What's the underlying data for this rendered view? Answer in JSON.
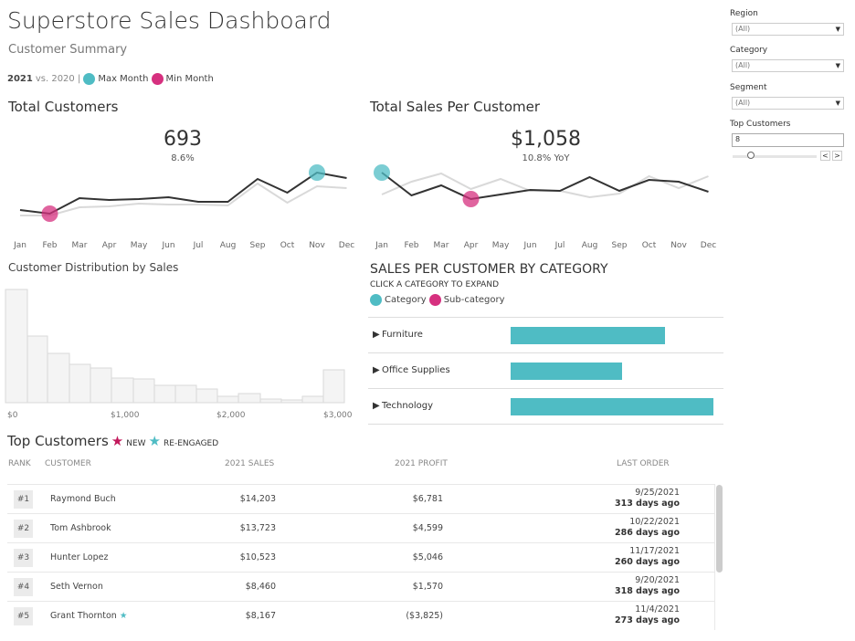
{
  "header": {
    "title": "Superstore Sales Dashboard",
    "subtitle": "Customer Summary",
    "legend_year": "2021",
    "legend_vs": "vs. 2020 |",
    "max_label": "Max Month",
    "min_label": "Min Month"
  },
  "colors": {
    "max": "#4fbcc4",
    "min": "#d6307f",
    "current": "#333333",
    "prior": "#d9d9d9"
  },
  "filters": [
    {
      "label": "Region",
      "value": "(All)"
    },
    {
      "label": "Category",
      "value": "(All)"
    },
    {
      "label": "Segment",
      "value": "(All)"
    }
  ],
  "top_customers_filter": {
    "label": "Top Customers",
    "value": "8"
  },
  "chart_data": [
    {
      "type": "line",
      "title": "Total Customers",
      "kpi": "693",
      "kpi_change": "8.6%",
      "categories": [
        "Jan",
        "Feb",
        "Mar",
        "Apr",
        "May",
        "Jun",
        "Jul",
        "Aug",
        "Sep",
        "Oct",
        "Nov",
        "Dec"
      ],
      "series": [
        {
          "values": [
            20,
            16,
            33,
            31,
            32,
            34,
            29,
            29,
            54,
            39,
            61,
            55
          ]
        },
        {
          "values": [
            14,
            14,
            23,
            24,
            27,
            26,
            26,
            25,
            49,
            28,
            46,
            44
          ]
        }
      ],
      "max_index": 10,
      "min_index": 1
    },
    {
      "type": "line",
      "title": "Total Sales Per Customer",
      "kpi": "$1,058",
      "kpi_change": "10.8% YoY",
      "categories": [
        "Jan",
        "Feb",
        "Mar",
        "Apr",
        "May",
        "Jun",
        "Jul",
        "Aug",
        "Sep",
        "Oct",
        "Nov",
        "Dec"
      ],
      "series": [
        {
          "values": [
            61,
            36,
            47,
            32,
            37,
            42,
            41,
            56,
            41,
            53,
            51,
            40
          ]
        },
        {
          "values": [
            37,
            51,
            60,
            43,
            54,
            41,
            41,
            34,
            38,
            57,
            44,
            57
          ]
        }
      ],
      "max_index": 0,
      "min_index": 3
    },
    {
      "type": "bar",
      "title": "Customer Distribution by Sales",
      "x_ticks": [
        "$0",
        "$1,000",
        "$2,000",
        "$3,000"
      ],
      "values": [
        124,
        73,
        54,
        42,
        38,
        27,
        26,
        19,
        19,
        15,
        7,
        10,
        4,
        3,
        7,
        36
      ]
    },
    {
      "type": "bar",
      "title": "SALES PER CUSTOMER BY CATEGORY",
      "subtitle": "CLICK A CATEGORY TO EXPAND",
      "legend": [
        "Category",
        "Sub-category"
      ],
      "categories": [
        "Furniture",
        "Office Supplies",
        "Technology"
      ],
      "values": [
        169,
        122,
        222
      ]
    }
  ],
  "table": {
    "title": "Top Customers",
    "new_label": "NEW",
    "reengaged_label": "RE-ENGAGED",
    "headers": [
      "RANK",
      "CUSTOMER",
      "2021 SALES",
      "2021 PROFIT",
      "LAST ORDER"
    ],
    "rows": [
      {
        "rank": "#1",
        "customer": "Raymond Buch",
        "sales": "$14,203",
        "profit": "$6,781",
        "date": "9/25/2021",
        "ago": "313 days ago",
        "star": ""
      },
      {
        "rank": "#2",
        "customer": "Tom Ashbrook",
        "sales": "$13,723",
        "profit": "$4,599",
        "date": "10/22/2021",
        "ago": "286 days ago",
        "star": ""
      },
      {
        "rank": "#3",
        "customer": "Hunter Lopez",
        "sales": "$10,523",
        "profit": "$5,046",
        "date": "11/17/2021",
        "ago": "260 days ago",
        "star": ""
      },
      {
        "rank": "#4",
        "customer": "Seth Vernon",
        "sales": "$8,460",
        "profit": "$1,570",
        "date": "9/20/2021",
        "ago": "318 days ago",
        "star": ""
      },
      {
        "rank": "#5",
        "customer": "Grant Thornton",
        "sales": "$8,167",
        "profit": "($3,825)",
        "date": "11/4/2021",
        "ago": "273 days ago",
        "star": "re-engaged"
      }
    ]
  }
}
